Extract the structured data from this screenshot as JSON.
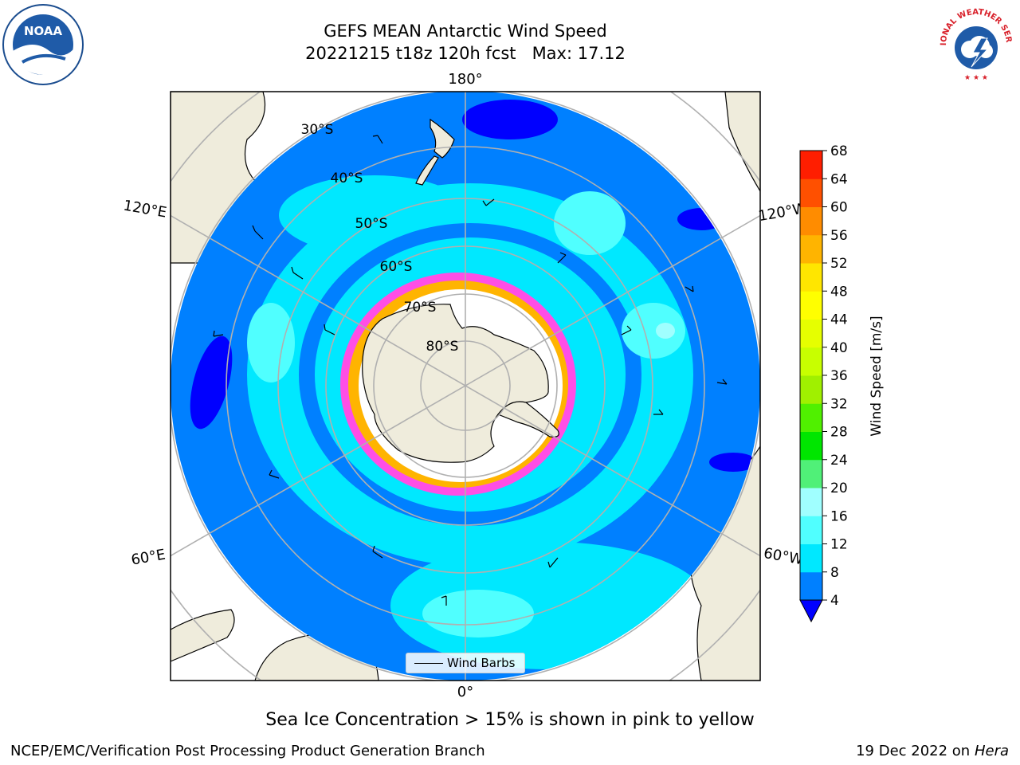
{
  "title": "GEFS MEAN Antarctic Wind Speed",
  "subtitle": "20221215 t18z 120h fcst   Max: 17.12",
  "map": {
    "longitude_labels": {
      "top": "180°",
      "bottom": "0°",
      "left_upper": "120°E",
      "left_lower": "60°E",
      "right_upper": "120°W",
      "right_lower": "60°W"
    },
    "latitude_labels": [
      "30°S",
      "40°S",
      "50°S",
      "60°S",
      "70°S",
      "80°S"
    ],
    "projection": "South Polar Stereographic",
    "ocean_color": "#0080ff",
    "land_color": "#efecdc"
  },
  "legend": {
    "label": "Wind Barbs"
  },
  "colorbar": {
    "label": "Wind Speed [m/s]",
    "ticks": [
      "4",
      "8",
      "12",
      "16",
      "20",
      "24",
      "28",
      "32",
      "36",
      "40",
      "44",
      "48",
      "52",
      "56",
      "60",
      "64",
      "68"
    ],
    "colors": [
      "#0080ff",
      "#00e8ff",
      "#50ffff",
      "#a0ffff",
      "#50f078",
      "#00e600",
      "#50f000",
      "#a0f000",
      "#c8ff00",
      "#e6ff00",
      "#ffff00",
      "#ffe600",
      "#ffb400",
      "#ff8c00",
      "#ff5000",
      "#ff1e00"
    ],
    "under_color": "#0000ff"
  },
  "note": "Sea Ice Concentration > 15% is shown in pink to yellow",
  "footer": {
    "left": "NCEP/EMC/Verification Post Processing Product Generation Branch",
    "date": "19 Dec 2022 on",
    "machine": "Hera"
  },
  "logos": {
    "noaa": "NOAA",
    "nws": "NATIONAL WEATHER SERVICE"
  }
}
